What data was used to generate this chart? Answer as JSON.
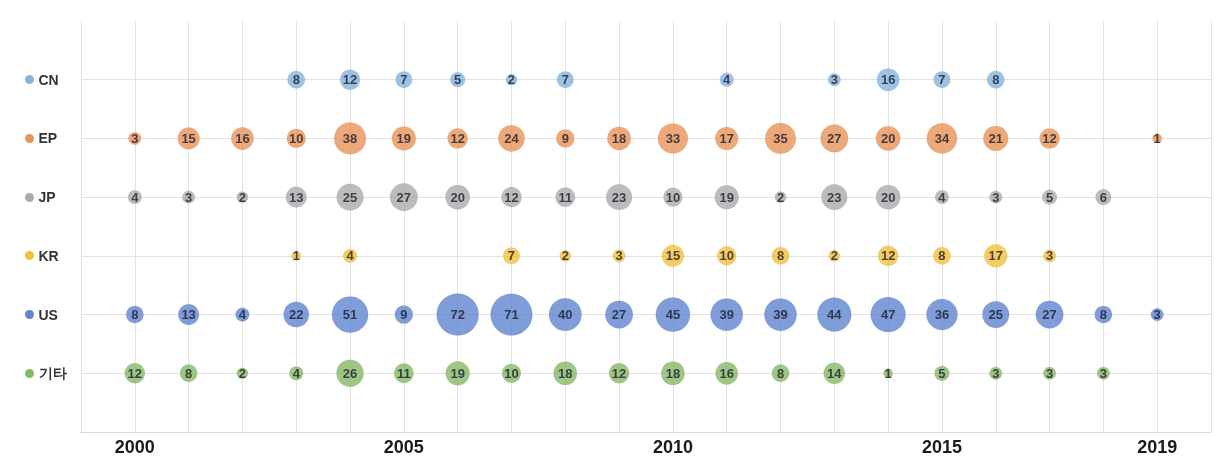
{
  "chart_data": {
    "type": "heatmap",
    "categories": [
      "2000",
      null,
      null,
      null,
      null,
      "2005",
      null,
      null,
      null,
      null,
      "2010",
      null,
      null,
      null,
      null,
      "2015",
      null,
      null,
      null,
      "2019"
    ],
    "y_categories": [
      "CN",
      "EP",
      "JP",
      "KR",
      "US",
      "기타"
    ],
    "colors": [
      "#85b4dd",
      "#e99458",
      "#ababab",
      "#f3c13a",
      "#5f85cf",
      "#86b865"
    ],
    "cells": [
      [
        null,
        null,
        null,
        8,
        12,
        7,
        5,
        2,
        7,
        null,
        null,
        4,
        null,
        3,
        16,
        7,
        8,
        null,
        null,
        null
      ],
      [
        3,
        15,
        16,
        10,
        38,
        19,
        12,
        24,
        9,
        18,
        33,
        17,
        35,
        27,
        20,
        34,
        21,
        12,
        null,
        1
      ],
      [
        4,
        3,
        2,
        13,
        25,
        27,
        20,
        12,
        11,
        23,
        10,
        19,
        2,
        23,
        20,
        4,
        3,
        5,
        6,
        null
      ],
      [
        null,
        null,
        null,
        1,
        4,
        null,
        null,
        7,
        2,
        3,
        15,
        10,
        8,
        2,
        12,
        8,
        17,
        3,
        null,
        null
      ],
      [
        8,
        13,
        4,
        22,
        51,
        9,
        72,
        71,
        40,
        27,
        45,
        39,
        39,
        44,
        47,
        36,
        25,
        27,
        8,
        3
      ],
      [
        12,
        8,
        2,
        4,
        26,
        11,
        19,
        10,
        18,
        12,
        18,
        16,
        8,
        14,
        1,
        5,
        3,
        3,
        3,
        null
      ]
    ],
    "data_labels": true,
    "grid": true
  }
}
